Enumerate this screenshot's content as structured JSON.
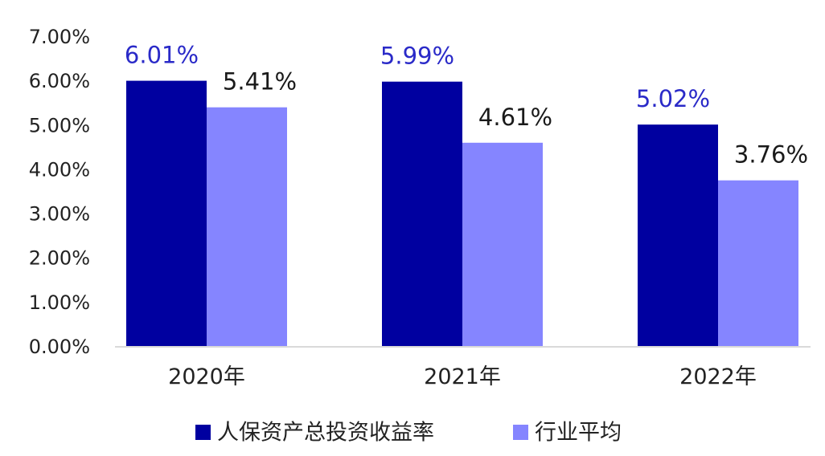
{
  "chart_data": {
    "type": "bar",
    "categories": [
      "2020年",
      "2021年",
      "2022年"
    ],
    "series": [
      {
        "name": "人保资产总投资收益率",
        "values": [
          6.01,
          5.99,
          5.02
        ],
        "labels": [
          "6.01%",
          "5.99%",
          "5.02%"
        ],
        "color": "#0000A0",
        "label_color": "#2A2AC8"
      },
      {
        "name": "行业平均",
        "values": [
          5.41,
          4.61,
          3.76
        ],
        "labels": [
          "5.41%",
          "4.61%",
          "3.76%"
        ],
        "color": "#8585FF",
        "label_color": "#1A1A1A"
      }
    ],
    "ylim": [
      0,
      7
    ],
    "yticks": [
      0,
      1,
      2,
      3,
      4,
      5,
      6,
      7
    ],
    "ytick_labels": [
      "0.00%",
      "1.00%",
      "2.00%",
      "3.00%",
      "4.00%",
      "5.00%",
      "6.00%",
      "7.00%"
    ],
    "grid": false,
    "legend_position": "bottom"
  }
}
